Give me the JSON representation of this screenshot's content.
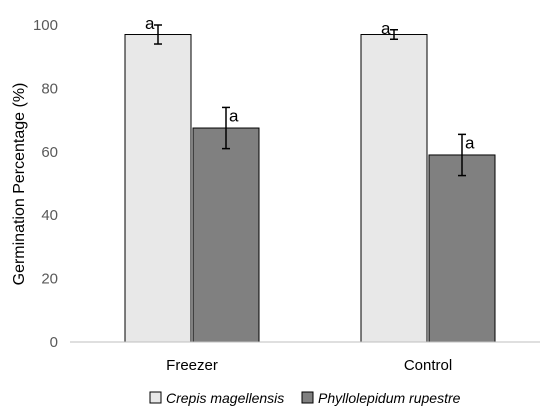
{
  "chart_data": {
    "type": "bar",
    "categories": [
      "Freezer",
      "Control"
    ],
    "series": [
      {
        "name": "Crepis magellensis",
        "values": [
          97,
          97
        ],
        "error": [
          3,
          1.5
        ],
        "labels": [
          "a",
          "a"
        ],
        "color": "#e8e8e8"
      },
      {
        "name": "Phyllolepidum rupestre",
        "values": [
          67.5,
          59
        ],
        "error": [
          6.5,
          6.5
        ],
        "labels": [
          "a",
          "a"
        ],
        "color": "#808080"
      }
    ],
    "ylabel": "Germination Percentage (%)",
    "xlabel": "",
    "ylim": [
      0,
      100
    ],
    "yticks": [
      0,
      20,
      40,
      60,
      80,
      100
    ],
    "grid": false,
    "legend": "bottom"
  }
}
